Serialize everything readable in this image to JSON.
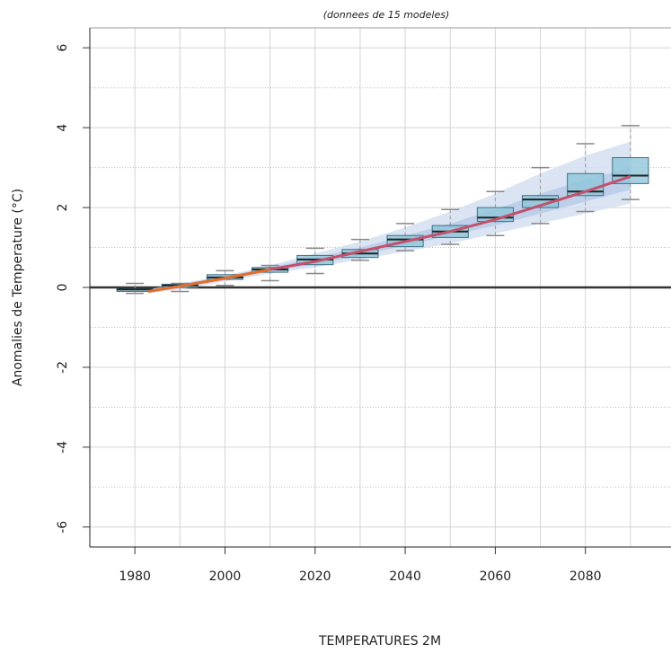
{
  "chart_data": {
    "type": "box",
    "title": "(donnees de 15 modeles)",
    "ylabel": "Anomalies de Temperature (°C)",
    "xlabel": "TEMPERATURES 2M",
    "xlim": [
      1970,
      2099
    ],
    "ylim": [
      -6.5,
      6.5
    ],
    "xticks": [
      1980,
      2000,
      2020,
      2040,
      2060,
      2080
    ],
    "xgrid": [
      1980,
      1990,
      2000,
      2010,
      2020,
      2030,
      2040,
      2050,
      2060,
      2070,
      2080,
      2090
    ],
    "yticks": [
      -6,
      -4,
      -2,
      0,
      2,
      4,
      6
    ],
    "yminor": [
      -5,
      -3,
      -1,
      1,
      3,
      5
    ],
    "boxes": {
      "color": "#8fc6da",
      "x": [
        1980,
        1990,
        2000,
        2010,
        2020,
        2030,
        2040,
        2050,
        2060,
        2070,
        2080,
        2090
      ],
      "low": [
        -0.15,
        -0.1,
        0.05,
        0.17,
        0.35,
        0.68,
        0.92,
        1.08,
        1.3,
        1.6,
        1.9,
        2.2
      ],
      "q1": [
        -0.1,
        0,
        0.2,
        0.38,
        0.57,
        0.75,
        1.02,
        1.25,
        1.65,
        2.0,
        2.3,
        2.6
      ],
      "median": [
        -0.05,
        0.05,
        0.25,
        0.45,
        0.7,
        0.85,
        1.2,
        1.4,
        1.75,
        2.2,
        2.4,
        2.8
      ],
      "q3": [
        -0.03,
        0.08,
        0.32,
        0.5,
        0.8,
        0.95,
        1.3,
        1.55,
        2.0,
        2.3,
        2.85,
        3.25
      ],
      "high": [
        0.1,
        0.1,
        0.42,
        0.55,
        0.98,
        1.2,
        1.6,
        1.95,
        2.4,
        3.0,
        3.6,
        4.05
      ]
    },
    "bands": {
      "x": [
        1983,
        1990,
        2000,
        2010,
        2020,
        2030,
        2040,
        2050,
        2060,
        2070,
        2080,
        2090
      ],
      "series": [
        {
          "color": "#d3dff0",
          "upper": [
            -0.05,
            0.1,
            0.3,
            0.55,
            0.85,
            1.15,
            1.5,
            1.9,
            2.35,
            2.85,
            3.3,
            3.65
          ],
          "lower": [
            -0.15,
            -0.05,
            0.15,
            0.35,
            0.5,
            0.7,
            0.9,
            1.1,
            1.35,
            1.6,
            1.85,
            2.1
          ]
        },
        {
          "color": "#b7cbe7",
          "upper": [
            -0.08,
            0.08,
            0.27,
            0.5,
            0.75,
            1.0,
            1.3,
            1.6,
            1.95,
            2.35,
            2.7,
            3.0
          ],
          "lower": [
            -0.12,
            0,
            0.2,
            0.4,
            0.58,
            0.8,
            1.05,
            1.3,
            1.55,
            1.85,
            2.15,
            2.45
          ]
        }
      ]
    },
    "lines": [
      {
        "color": "#c4506c",
        "x": [
          1983,
          1990,
          2000,
          2010,
          2020,
          2030,
          2040,
          2050,
          2060,
          2070,
          2080,
          2090
        ],
        "values": [
          -0.1,
          0.03,
          0.23,
          0.45,
          0.65,
          0.9,
          1.15,
          1.4,
          1.7,
          2.05,
          2.4,
          2.78
        ]
      },
      {
        "color": "#e0702c",
        "x": [
          1983,
          1990,
          2000,
          2010
        ],
        "values": [
          -0.1,
          0.03,
          0.23,
          0.45
        ]
      }
    ]
  }
}
